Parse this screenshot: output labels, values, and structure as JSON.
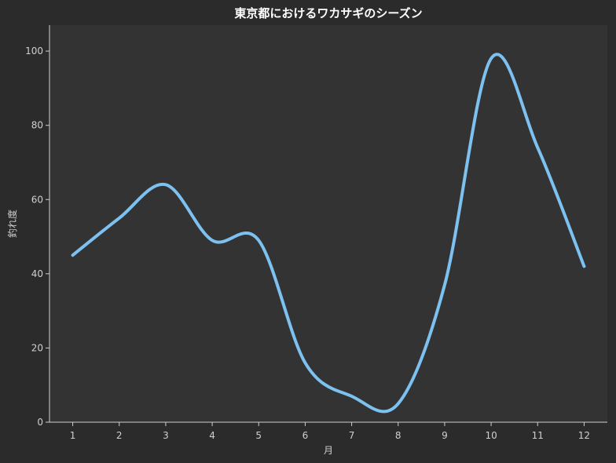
{
  "chart_data": {
    "type": "line",
    "title": "東京都におけるワカサギのシーズン",
    "xlabel": "月",
    "ylabel": "釣れ度",
    "x": [
      1,
      2,
      3,
      4,
      5,
      6,
      7,
      8,
      9,
      10,
      11,
      12
    ],
    "series": [
      {
        "values": [
          45,
          55,
          64,
          49,
          49,
          16,
          7,
          5,
          37,
          98,
          74,
          42
        ]
      }
    ],
    "xlim": [
      0.5,
      12.5
    ],
    "ylim": [
      0,
      107
    ],
    "yticks": [
      0,
      20,
      40,
      60,
      80,
      100
    ],
    "grid": false,
    "colors": {
      "figure_bg": "#2b2b2b",
      "plot_bg": "#333333",
      "line": "#7cc1f0",
      "text": "#cfcfcf",
      "title": "#ffffff"
    }
  }
}
